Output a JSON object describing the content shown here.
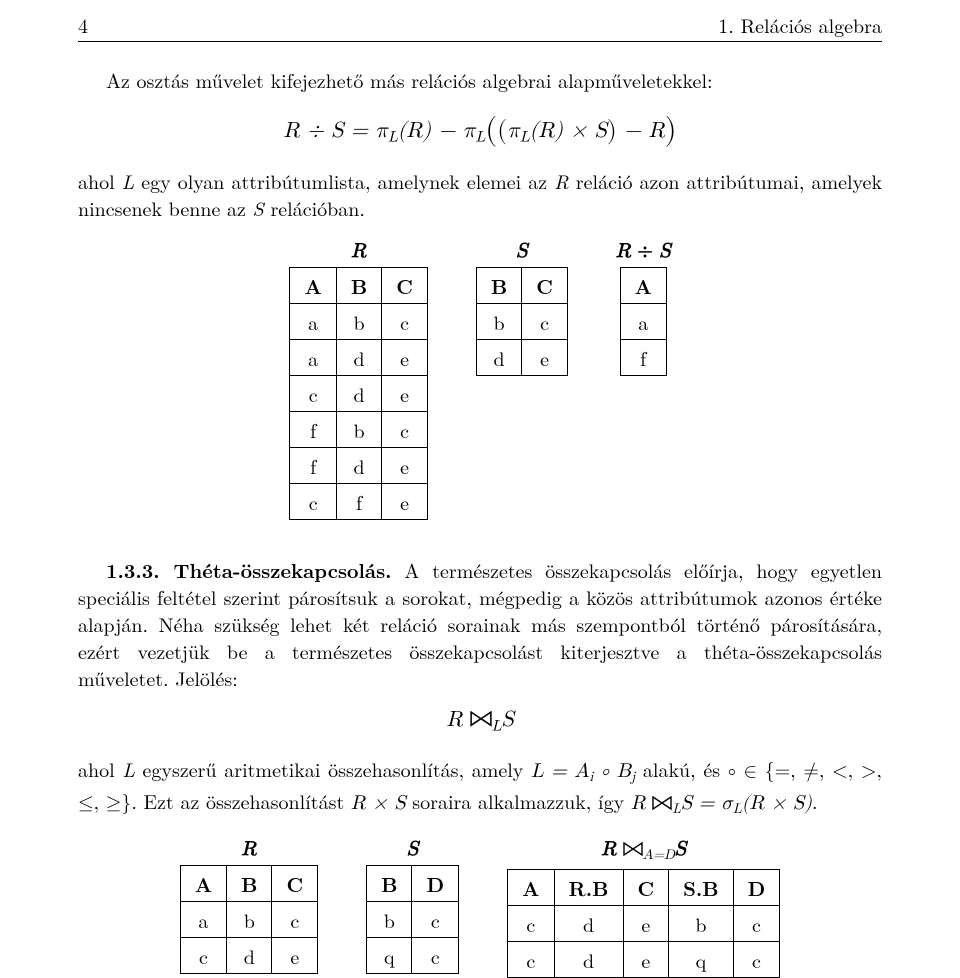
{
  "page_number": "4",
  "chapter_title": "1. Relációs algebra",
  "intro": "Az osztás művelet kifejezhető más relációs algebrai alapműveletekkel:",
  "formula1_html": "R ÷ S = π<span class='sub'>L</span>(R) − π<span class='sub'>L</span><span class='bigl'>(</span><span class='medl'>(</span>π<span class='sub'>L</span>(R) × S<span class='medl'>)</span> − R<span class='bigl'>)</span>",
  "para1": "ahol <span class='it'>L</span> egy olyan attribútumlista, amelynek elemei az <span class='it'>R</span> reláció azon attribútumai, amelyek nincsenek benne az <span class='it'>S</span> relációban.",
  "tables1": {
    "R": {
      "title": "R",
      "header": [
        "A",
        "B",
        "C"
      ],
      "rows": [
        [
          "a",
          "b",
          "c"
        ],
        [
          "a",
          "d",
          "e"
        ],
        [
          "c",
          "d",
          "e"
        ],
        [
          "f",
          "b",
          "c"
        ],
        [
          "f",
          "d",
          "e"
        ],
        [
          "c",
          "f",
          "e"
        ]
      ]
    },
    "S": {
      "title": "S",
      "header": [
        "B",
        "C"
      ],
      "rows": [
        [
          "b",
          "c"
        ],
        [
          "d",
          "e"
        ]
      ]
    },
    "RS": {
      "title_html": "R <span class='op'>÷</span> S",
      "header": [
        "A"
      ],
      "rows": [
        [
          "a"
        ],
        [
          "f"
        ]
      ]
    }
  },
  "section_head": "1.3.3. Théta-összekapcsolás.",
  "para2": " A természetes összekapcsolás előírja, hogy egyetlen speciális feltétel szerint párosítsuk a sorokat, mégpedig a közös attribútumok azonos értéke alapján. Néha szükség lehet két reláció sorainak más szempontból történő párosítására, ezért vezetjük be a természetes összekapcsolást kiterjesztve a théta-összekapcsolás műveletet. Jelölés:",
  "formula2_html": "R <span class='joinsym'><svg viewBox='0 0 20 14'><path d='M1 1 L10 7 L1 13 Z M19 1 L10 7 L19 13 Z' fill='none' stroke='#000' stroke-width='1.4'/></svg></span><span class='sub'>L</span>S",
  "para3": "ahol <span class='it'>L</span> egyszerű aritmetikai összehasonlítás, amely <span class='it math'>L = A<span class=\"sub\">i</span> ∘ B<span class=\"sub\">j</span></span> alakú, és <span class='math'>∘ ∈ {=, ≠, &lt;, &gt;, ≤, ≥}</span>. Ezt az összehasonlítást <span class='it math'>R × S</span> soraira alkalmazzuk, így <span class='it math'>R</span> <span class='joinsym'><svg viewBox='0 0 20 14'><path d='M1 1 L10 7 L1 13 Z M19 1 L10 7 L19 13 Z' fill='none' stroke='#000' stroke-width='1.4'/></svg></span><span class='sub it'>L</span><span class='it math'>S = σ<span class=\"sub\">L</span>(R × S)</span>.",
  "tables2": {
    "R": {
      "title": "R",
      "header": [
        "A",
        "B",
        "C"
      ],
      "rows": [
        [
          "a",
          "b",
          "c"
        ],
        [
          "c",
          "d",
          "e"
        ]
      ]
    },
    "S": {
      "title": "S",
      "header": [
        "B",
        "D"
      ],
      "rows": [
        [
          "b",
          "c"
        ],
        [
          "q",
          "c"
        ]
      ]
    },
    "RS": {
      "title_html": "R <span class='joinsym'><svg viewBox='0 0 20 14'><path d='M1 1 L10 7 L1 13 Z M19 1 L10 7 L19 13 Z' fill='none' stroke='#000' stroke-width='1.4'/></svg></span><span class='sub' style='font-style:italic;font-weight:normal'>A=D</span>S",
      "header": [
        "A",
        "R.B",
        "C",
        "S.B",
        "D"
      ],
      "rows": [
        [
          "c",
          "d",
          "e",
          "b",
          "c"
        ],
        [
          "c",
          "d",
          "e",
          "q",
          "c"
        ]
      ]
    }
  },
  "style": {
    "font_size_body": 20,
    "font_size_formula": 22,
    "page_padding_x": 78,
    "table_gap": 48,
    "text_color": "#000000",
    "background": "#ffffff",
    "border_color": "#000000"
  }
}
